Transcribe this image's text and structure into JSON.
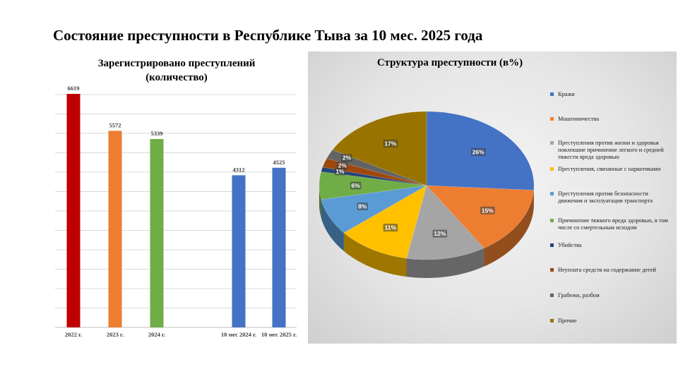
{
  "page": {
    "title": "Состояние преступности  в Республике Тыва за  10 мес. 2025 года"
  },
  "chart_data": [
    {
      "type": "bar",
      "title_line1": "Зарегистрировано преступлений",
      "title_line2": "(количество)",
      "categories": [
        "2022 г.",
        "2023 г.",
        "2024 г.",
        "10 мес 2024 г.",
        "10 мес 2025 г."
      ],
      "values": [
        6619,
        5572,
        5339,
        4312,
        4525
      ],
      "value_labels": [
        "6619",
        "5572",
        "5339",
        "4312",
        "4525"
      ],
      "colors": [
        "#c00000",
        "#ed7d31",
        "#70ad47",
        "#4472c4",
        "#4472c4"
      ],
      "ylim": [
        0,
        6600
      ],
      "grid": true
    },
    {
      "type": "pie",
      "title": "Структура преступности (в%)",
      "labels": [
        "Кражи",
        "Мошенничества",
        "Преступления против жизни и здоровья повлекшие причинение легкого и средней тяжести вреда здоровью",
        "Преступления, связанные с наркотиками",
        " Преступления против безопасности движения и эксплуатации транспорта",
        "Причинение тяжкого вреда здоровью, в том числе со смертельным исходом",
        "Убийства",
        "Неуплата средств на содержание детей",
        "Грабежи, разбои",
        "Прочие"
      ],
      "values": [
        26,
        15,
        12,
        11,
        8,
        6,
        1,
        2,
        2,
        17
      ],
      "value_labels": [
        "26%",
        "15%",
        "12%",
        "11%",
        "8%",
        "6%",
        "1%",
        "2%",
        "2%",
        "17%"
      ],
      "colors": [
        "#4472c4",
        "#ed7d31",
        "#a5a5a5",
        "#ffc000",
        "#5b9bd5",
        "#70ad47",
        "#264478",
        "#9e480e",
        "#636363",
        "#997300"
      ],
      "legend_position": "right",
      "style": "3d"
    }
  ]
}
